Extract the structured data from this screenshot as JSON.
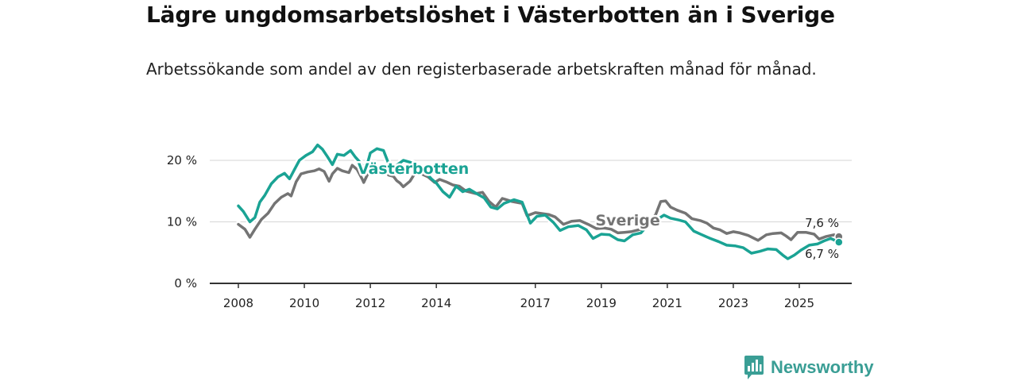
{
  "title": "Lägre ungdomsarbetslöshet i Västerbotten än i Sverige",
  "subtitle": "Arbetssökande som andel av den registerbaserade arbetskraften månad för månad.",
  "brand": {
    "name": "Newsworthy",
    "icon": "bar-chart-speech-bubble-icon"
  },
  "colors": {
    "vasterbotten": "#1aa394",
    "sverige": "#747474",
    "grid": "#d6d6d6",
    "axis": "#333333"
  },
  "chart_data": {
    "type": "line",
    "title": "Lägre ungdomsarbetslöshet i Västerbotten än i Sverige",
    "ylabel": "",
    "xlabel": "",
    "ylim": [
      0,
      24
    ],
    "xlim": [
      2007.4,
      2026.9
    ],
    "y_ticks": [
      0,
      10,
      20
    ],
    "y_tick_labels": [
      "0 %",
      "10 %",
      "20 %"
    ],
    "x_ticks": [
      2008,
      2010,
      2012,
      2014,
      2017,
      2019,
      2021,
      2023,
      2025
    ],
    "x_tick_labels": [
      "2008",
      "2010",
      "2012",
      "2014",
      "2017",
      "2019",
      "2021",
      "2023",
      "2025"
    ],
    "grid": true,
    "series": [
      {
        "name": "Sverige",
        "label": "Sverige",
        "end_label": "7,6 %",
        "points": [
          [
            2008.0,
            9.6
          ],
          [
            2008.2,
            8.8
          ],
          [
            2008.35,
            7.5
          ],
          [
            2008.5,
            8.8
          ],
          [
            2008.7,
            10.4
          ],
          [
            2008.9,
            11.4
          ],
          [
            2009.1,
            13.0
          ],
          [
            2009.3,
            14.0
          ],
          [
            2009.5,
            14.6
          ],
          [
            2009.6,
            14.2
          ],
          [
            2009.75,
            16.5
          ],
          [
            2009.9,
            17.8
          ],
          [
            2010.1,
            18.1
          ],
          [
            2010.3,
            18.3
          ],
          [
            2010.45,
            18.6
          ],
          [
            2010.6,
            18.2
          ],
          [
            2010.75,
            16.6
          ],
          [
            2010.85,
            17.8
          ],
          [
            2011.0,
            18.7
          ],
          [
            2011.15,
            18.3
          ],
          [
            2011.35,
            18.0
          ],
          [
            2011.45,
            19.2
          ],
          [
            2011.6,
            18.5
          ],
          [
            2011.75,
            17.0
          ],
          [
            2011.8,
            16.4
          ],
          [
            2011.95,
            18.1
          ],
          [
            2012.1,
            18.6
          ],
          [
            2012.3,
            18.9
          ],
          [
            2012.45,
            19.2
          ],
          [
            2012.55,
            17.6
          ],
          [
            2012.7,
            17.4
          ],
          [
            2012.8,
            16.7
          ],
          [
            2012.9,
            16.3
          ],
          [
            2013.0,
            15.7
          ],
          [
            2013.2,
            16.6
          ],
          [
            2013.35,
            17.9
          ],
          [
            2013.55,
            17.8
          ],
          [
            2013.75,
            17.3
          ],
          [
            2013.95,
            16.4
          ],
          [
            2014.1,
            16.9
          ],
          [
            2014.3,
            16.5
          ],
          [
            2014.5,
            16.0
          ],
          [
            2014.7,
            15.8
          ],
          [
            2014.9,
            15.0
          ],
          [
            2015.2,
            14.6
          ],
          [
            2015.4,
            14.8
          ],
          [
            2015.6,
            13.3
          ],
          [
            2015.8,
            12.4
          ],
          [
            2016.0,
            13.8
          ],
          [
            2016.3,
            13.3
          ],
          [
            2016.6,
            13.0
          ],
          [
            2016.75,
            11.0
          ],
          [
            2017.0,
            11.5
          ],
          [
            2017.4,
            11.2
          ],
          [
            2017.6,
            10.8
          ],
          [
            2017.85,
            9.6
          ],
          [
            2018.1,
            10.1
          ],
          [
            2018.35,
            10.2
          ],
          [
            2018.6,
            9.6
          ],
          [
            2018.85,
            8.9
          ],
          [
            2019.1,
            9.0
          ],
          [
            2019.3,
            8.8
          ],
          [
            2019.5,
            8.2
          ],
          [
            2019.7,
            8.3
          ],
          [
            2019.9,
            8.4
          ],
          [
            2020.2,
            8.8
          ],
          [
            2020.5,
            10.2
          ],
          [
            2020.65,
            11.2
          ],
          [
            2020.8,
            13.3
          ],
          [
            2020.95,
            13.4
          ],
          [
            2021.1,
            12.4
          ],
          [
            2021.3,
            11.9
          ],
          [
            2021.55,
            11.4
          ],
          [
            2021.75,
            10.5
          ],
          [
            2022.0,
            10.2
          ],
          [
            2022.2,
            9.8
          ],
          [
            2022.4,
            9.0
          ],
          [
            2022.6,
            8.7
          ],
          [
            2022.8,
            8.1
          ],
          [
            2023.0,
            8.4
          ],
          [
            2023.2,
            8.2
          ],
          [
            2023.45,
            7.8
          ],
          [
            2023.75,
            7.0
          ],
          [
            2024.0,
            7.9
          ],
          [
            2024.2,
            8.1
          ],
          [
            2024.45,
            8.2
          ],
          [
            2024.6,
            7.7
          ],
          [
            2024.75,
            7.1
          ],
          [
            2024.95,
            8.3
          ],
          [
            2025.2,
            8.3
          ],
          [
            2025.45,
            8.0
          ],
          [
            2025.6,
            7.2
          ],
          [
            2025.8,
            7.6
          ],
          [
            2026.05,
            7.9
          ],
          [
            2026.2,
            7.6
          ]
        ]
      },
      {
        "name": "Västerbotten",
        "label": "Västerbotten",
        "end_label": "6,7 %",
        "points": [
          [
            2008.0,
            12.6
          ],
          [
            2008.15,
            11.7
          ],
          [
            2008.35,
            10.0
          ],
          [
            2008.5,
            10.7
          ],
          [
            2008.65,
            13.2
          ],
          [
            2008.8,
            14.3
          ],
          [
            2009.0,
            16.2
          ],
          [
            2009.2,
            17.3
          ],
          [
            2009.4,
            17.9
          ],
          [
            2009.55,
            17.0
          ],
          [
            2009.7,
            18.5
          ],
          [
            2009.85,
            20.0
          ],
          [
            2010.05,
            20.8
          ],
          [
            2010.25,
            21.4
          ],
          [
            2010.4,
            22.5
          ],
          [
            2010.55,
            21.8
          ],
          [
            2010.7,
            20.6
          ],
          [
            2010.85,
            19.3
          ],
          [
            2011.0,
            21.0
          ],
          [
            2011.2,
            20.8
          ],
          [
            2011.4,
            21.6
          ],
          [
            2011.55,
            20.5
          ],
          [
            2011.7,
            19.6
          ],
          [
            2011.85,
            18.3
          ],
          [
            2012.0,
            21.2
          ],
          [
            2012.2,
            21.9
          ],
          [
            2012.4,
            21.6
          ],
          [
            2012.55,
            19.5
          ],
          [
            2012.75,
            19.0
          ],
          [
            2013.0,
            20.0
          ],
          [
            2013.2,
            19.7
          ],
          [
            2013.45,
            19.2
          ],
          [
            2013.65,
            18.2
          ],
          [
            2013.85,
            17.0
          ],
          [
            2014.0,
            16.3
          ],
          [
            2014.2,
            14.9
          ],
          [
            2014.4,
            14.0
          ],
          [
            2014.6,
            15.8
          ],
          [
            2014.8,
            14.9
          ],
          [
            2015.0,
            15.3
          ],
          [
            2015.25,
            14.5
          ],
          [
            2015.45,
            13.9
          ],
          [
            2015.65,
            12.4
          ],
          [
            2015.85,
            12.1
          ],
          [
            2016.05,
            13.0
          ],
          [
            2016.35,
            13.6
          ],
          [
            2016.6,
            13.2
          ],
          [
            2016.85,
            9.8
          ],
          [
            2017.05,
            10.9
          ],
          [
            2017.3,
            11.1
          ],
          [
            2017.55,
            9.9
          ],
          [
            2017.75,
            8.6
          ],
          [
            2018.0,
            9.2
          ],
          [
            2018.3,
            9.4
          ],
          [
            2018.55,
            8.7
          ],
          [
            2018.75,
            7.3
          ],
          [
            2019.0,
            8.0
          ],
          [
            2019.25,
            7.9
          ],
          [
            2019.5,
            7.1
          ],
          [
            2019.7,
            6.9
          ],
          [
            2019.95,
            7.9
          ],
          [
            2020.2,
            8.2
          ],
          [
            2020.45,
            9.7
          ],
          [
            2020.7,
            10.4
          ],
          [
            2020.9,
            11.1
          ],
          [
            2021.1,
            10.6
          ],
          [
            2021.35,
            10.3
          ],
          [
            2021.55,
            10.0
          ],
          [
            2021.8,
            8.5
          ],
          [
            2022.05,
            7.9
          ],
          [
            2022.3,
            7.3
          ],
          [
            2022.55,
            6.8
          ],
          [
            2022.8,
            6.2
          ],
          [
            2023.05,
            6.1
          ],
          [
            2023.3,
            5.8
          ],
          [
            2023.55,
            4.9
          ],
          [
            2023.8,
            5.2
          ],
          [
            2024.05,
            5.6
          ],
          [
            2024.3,
            5.5
          ],
          [
            2024.5,
            4.6
          ],
          [
            2024.65,
            4.0
          ],
          [
            2024.85,
            4.6
          ],
          [
            2025.05,
            5.4
          ],
          [
            2025.3,
            6.2
          ],
          [
            2025.55,
            6.4
          ],
          [
            2025.75,
            6.9
          ],
          [
            2025.95,
            7.3
          ],
          [
            2026.2,
            6.7
          ]
        ]
      }
    ]
  }
}
